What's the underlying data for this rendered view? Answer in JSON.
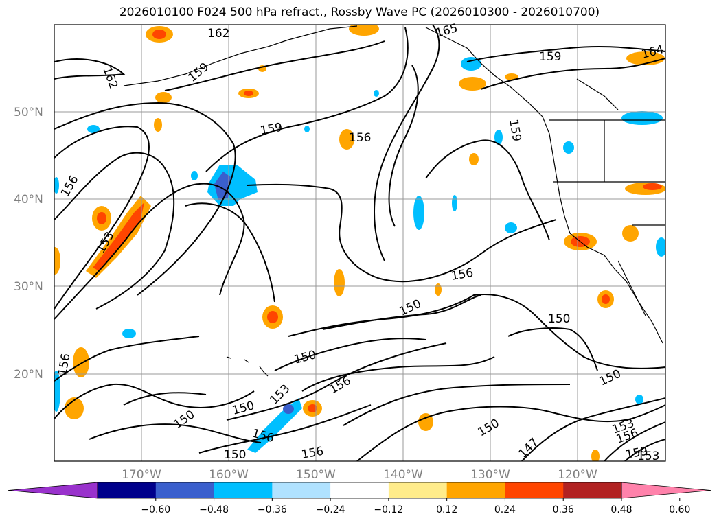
{
  "title": "2026010100 F024 500 hPa refract., Rossby Wave PC (2026010300 - 2026010700)",
  "map": {
    "lon_labels": [
      "170°W",
      "160°W",
      "150°W",
      "140°W",
      "130°W",
      "120°W"
    ],
    "lat_labels": [
      "50°N",
      "40°N",
      "30°N",
      "20°N"
    ],
    "gridlines": true
  },
  "contour_labels": [
    "162",
    "162",
    "165",
    "159",
    "164",
    "159",
    "159",
    "159",
    "156",
    "156",
    "156",
    "153",
    "156",
    "150",
    "156",
    "150",
    "150",
    "150",
    "150",
    "153",
    "156",
    "150",
    "150",
    "156",
    "150",
    "150",
    "159",
    "156",
    "147",
    "153",
    "156",
    "153"
  ],
  "colorbar": {
    "colors": [
      "#9932cc",
      "#00008b",
      "#3a5fcd",
      "#00bfff",
      "#b0e2ff",
      "#ffffff",
      "#ffec8b",
      "#ffa500",
      "#ff4500",
      "#b22222",
      "#ff82ab"
    ],
    "tick_labels": [
      "−0.60",
      "−0.48",
      "−0.36",
      "−0.24",
      "−0.12",
      "0.12",
      "0.24",
      "0.36",
      "0.48",
      "0.60"
    ]
  }
}
